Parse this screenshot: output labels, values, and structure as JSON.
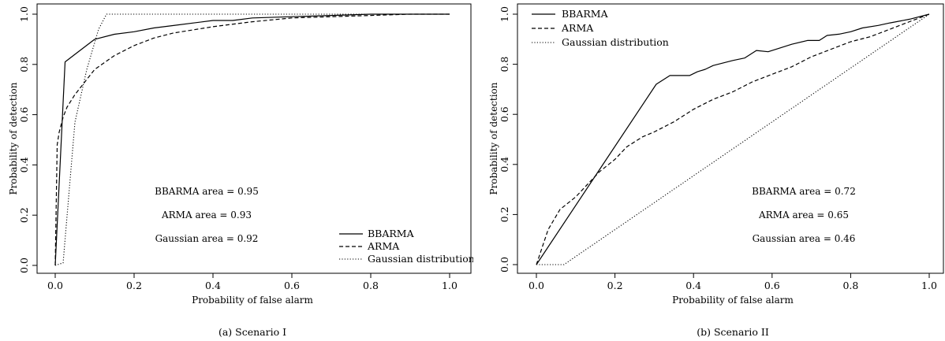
{
  "chart_data": [
    {
      "type": "line",
      "caption": "(a) Scenario I",
      "xlabel": "Probability of false alarm",
      "ylabel": "Probability of detection",
      "xlim": [
        0,
        1
      ],
      "ylim": [
        0,
        1
      ],
      "xticks": [
        "0.0",
        "0.2",
        "0.4",
        "0.6",
        "0.8",
        "1.0"
      ],
      "yticks": [
        "0.0",
        "0.2",
        "0.4",
        "0.6",
        "0.8",
        "1.0"
      ],
      "legend_position": "bottom-right",
      "annotations": [
        "BBARMA area = 0.95",
        "ARMA area = 0.93",
        "Gaussian area = 0.92"
      ],
      "series": [
        {
          "name": "BBARMA",
          "style": "solid",
          "x": [
            0,
            0.025,
            0.05,
            0.1,
            0.15,
            0.2,
            0.25,
            0.3,
            0.35,
            0.4,
            0.45,
            0.5,
            0.6,
            0.7,
            0.8,
            1.0
          ],
          "y": [
            0,
            0.81,
            0.84,
            0.9,
            0.92,
            0.93,
            0.945,
            0.955,
            0.965,
            0.975,
            0.975,
            0.985,
            0.99,
            0.995,
            1.0,
            1.0
          ]
        },
        {
          "name": "ARMA",
          "style": "dashed",
          "x": [
            0,
            0.005,
            0.01,
            0.02,
            0.03,
            0.05,
            0.07,
            0.1,
            0.15,
            0.2,
            0.25,
            0.3,
            0.4,
            0.5,
            0.6,
            0.7,
            0.8,
            0.9,
            1.0
          ],
          "y": [
            0,
            0.48,
            0.53,
            0.59,
            0.63,
            0.68,
            0.72,
            0.78,
            0.835,
            0.875,
            0.905,
            0.925,
            0.95,
            0.97,
            0.985,
            0.99,
            0.995,
            1.0,
            1.0
          ]
        },
        {
          "name": "Gaussian distribution",
          "style": "dotted",
          "x": [
            0,
            0.02,
            0.05,
            0.08,
            0.11,
            0.13,
            0.6,
            1.0
          ],
          "y": [
            0,
            0.01,
            0.57,
            0.78,
            0.94,
            1.0,
            1.0,
            1.0
          ]
        }
      ]
    },
    {
      "type": "line",
      "caption": "(b) Scenario II",
      "xlabel": "Probability of false alarm",
      "ylabel": "Probability of detection",
      "xlim": [
        0,
        1
      ],
      "ylim": [
        0,
        1
      ],
      "xticks": [
        "0.0",
        "0.2",
        "0.4",
        "0.6",
        "0.8",
        "1.0"
      ],
      "yticks": [
        "0.0",
        "0.2",
        "0.4",
        "0.6",
        "0.8",
        "1.0"
      ],
      "legend_position": "top-left",
      "annotations": [
        "BBARMA area = 0.72",
        "ARMA area = 0.65",
        "Gaussian area = 0.46"
      ],
      "series": [
        {
          "name": "BBARMA",
          "style": "solid",
          "x": [
            0,
            0.305,
            0.34,
            0.39,
            0.41,
            0.43,
            0.45,
            0.5,
            0.53,
            0.56,
            0.59,
            0.62,
            0.65,
            0.69,
            0.72,
            0.74,
            0.77,
            0.8,
            0.83,
            0.87,
            0.9,
            0.95,
            1.0
          ],
          "y": [
            0,
            0.72,
            0.755,
            0.755,
            0.77,
            0.78,
            0.795,
            0.815,
            0.825,
            0.855,
            0.85,
            0.865,
            0.88,
            0.895,
            0.895,
            0.915,
            0.92,
            0.93,
            0.945,
            0.955,
            0.965,
            0.98,
            1.0
          ]
        },
        {
          "name": "ARMA",
          "style": "dashed",
          "x": [
            0,
            0.03,
            0.06,
            0.1,
            0.13,
            0.16,
            0.2,
            0.23,
            0.27,
            0.3,
            0.35,
            0.4,
            0.45,
            0.5,
            0.55,
            0.6,
            0.65,
            0.7,
            0.75,
            0.8,
            0.85,
            0.9,
            0.95,
            1.0
          ],
          "y": [
            0,
            0.14,
            0.22,
            0.27,
            0.32,
            0.37,
            0.42,
            0.47,
            0.51,
            0.53,
            0.57,
            0.62,
            0.66,
            0.69,
            0.73,
            0.76,
            0.79,
            0.83,
            0.86,
            0.89,
            0.91,
            0.94,
            0.97,
            1.0
          ]
        },
        {
          "name": "Gaussian distribution",
          "style": "dotted",
          "x": [
            0,
            0.07,
            1.0
          ],
          "y": [
            0,
            0,
            1.0
          ]
        }
      ]
    }
  ]
}
